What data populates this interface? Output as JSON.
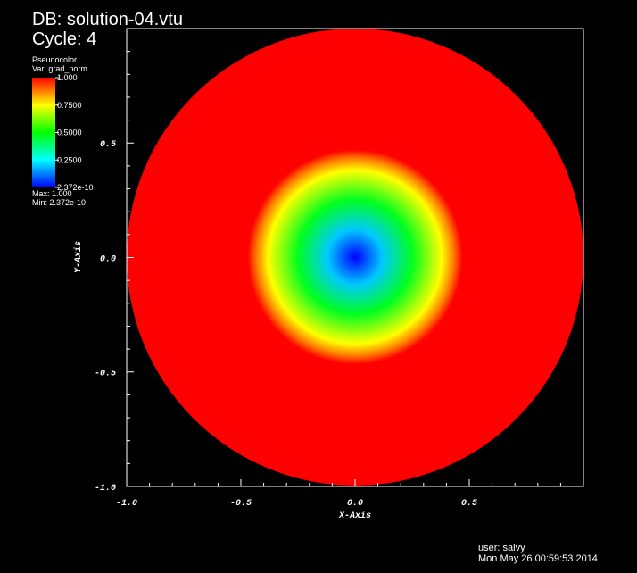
{
  "header": {
    "db": "DB: solution-04.vtu",
    "cycle": "Cycle: 4"
  },
  "legend": {
    "title": "Pseudocolor",
    "variable": "Var: grad_norm",
    "labels": [
      "1.000",
      "0.7500",
      "0.5000",
      "0.2500",
      "2.372e-10"
    ],
    "max": "Max:  1.000",
    "min": "Min:  2.372e-10"
  },
  "axes": {
    "x_title": "X-Axis",
    "y_title": "Y-Axis",
    "x_ticks": [
      "-1.0",
      "-0.5",
      "0.0",
      "0.5"
    ],
    "y_ticks": [
      "0.5",
      "0.0",
      "-0.5",
      "-1.0"
    ]
  },
  "footer": {
    "user": "user: salvy",
    "date": "Mon May 26 00:59:53 2014"
  }
}
